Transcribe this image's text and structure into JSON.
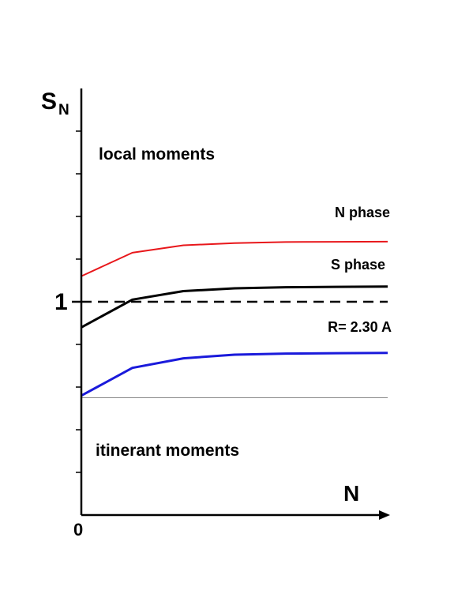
{
  "chart_data": {
    "type": "line",
    "title": "",
    "xlabel": "N",
    "ylabel": "S",
    "ylabel_sub": "N",
    "x_tick_labels": [
      {
        "value": 0,
        "label": "0"
      }
    ],
    "y_tick_labels": [
      {
        "value": 1,
        "label": "1"
      }
    ],
    "xlim": [
      0,
      6
    ],
    "ylim": [
      0,
      2.0
    ],
    "y_minor_ticks": [
      0.2,
      0.4,
      0.6,
      0.8,
      1.0,
      1.2,
      1.4,
      1.6,
      1.8
    ],
    "reference_lines": [
      {
        "name": "",
        "y": 1.0,
        "style": "dashed",
        "color": "#000000"
      },
      {
        "name": "",
        "y": 0.55,
        "style": "solid-thin",
        "color": "#888888"
      }
    ],
    "region_labels": [
      {
        "text": "local moments",
        "x": 0.35,
        "y": 1.35
      },
      {
        "text": "itinerant moments",
        "x": 0.3,
        "y": 0.23
      }
    ],
    "series": [
      {
        "name": "N phase",
        "color": "#e8171b",
        "x": [
          0,
          1,
          2,
          3,
          4,
          5,
          6
        ],
        "y": [
          1.12,
          1.23,
          1.265,
          1.275,
          1.28,
          1.281,
          1.282
        ]
      },
      {
        "name": "S phase",
        "color": "#000000",
        "x": [
          0,
          1,
          2,
          3,
          4,
          5,
          6
        ],
        "y": [
          0.88,
          1.01,
          1.05,
          1.063,
          1.068,
          1.07,
          1.071
        ]
      },
      {
        "name": "R= 2.30 A",
        "color": "#1a1adb",
        "x": [
          0,
          1,
          2,
          3,
          4,
          5,
          6
        ],
        "y": [
          0.56,
          0.69,
          0.735,
          0.752,
          0.757,
          0.759,
          0.76
        ]
      }
    ]
  }
}
